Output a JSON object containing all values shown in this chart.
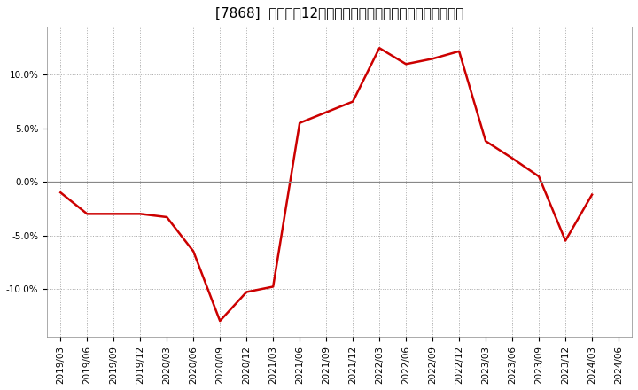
{
  "title": "[7868]  売上高の12か月移動合計の対前年同期増減率の推移",
  "line_color": "#cc0000",
  "background_color": "#ffffff",
  "plot_background_color": "#ffffff",
  "grid_color": "#aaaaaa",
  "x_labels": [
    "2019/03",
    "2019/06",
    "2019/09",
    "2019/12",
    "2020/03",
    "2020/06",
    "2020/09",
    "2020/12",
    "2021/03",
    "2021/06",
    "2021/09",
    "2021/12",
    "2022/03",
    "2022/06",
    "2022/09",
    "2022/12",
    "2023/03",
    "2023/06",
    "2023/09",
    "2023/12",
    "2024/03",
    "2024/06"
  ],
  "y_values": [
    -1.0,
    -3.0,
    -3.0,
    -3.0,
    -3.3,
    -6.5,
    -13.0,
    -10.3,
    -9.8,
    5.5,
    6.5,
    7.5,
    12.5,
    11.0,
    11.5,
    12.2,
    3.8,
    2.2,
    0.5,
    -5.5,
    -1.2,
    null
  ],
  "ylim": [
    -14.5,
    14.5
  ],
  "yticks": [
    -10.0,
    -5.0,
    0.0,
    5.0,
    10.0
  ],
  "ytick_labels": [
    "-10.0%",
    "-5.0%",
    "0.0%",
    "5.0%",
    "10.0%"
  ],
  "title_fontsize": 11,
  "axis_fontsize": 7.5,
  "line_width": 1.8
}
